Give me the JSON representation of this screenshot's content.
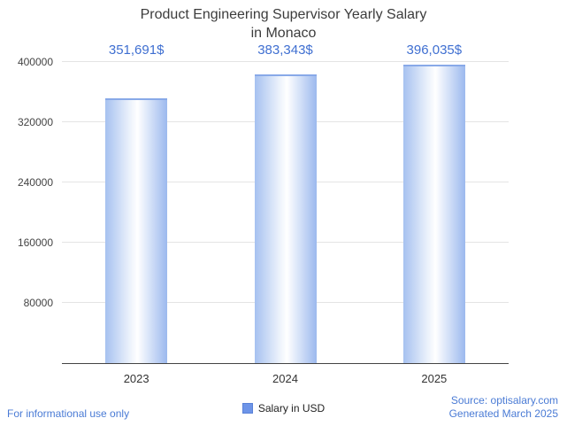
{
  "header": {
    "line1": "Product Engineering Supervisor Yearly Salary",
    "line2": "in Monaco"
  },
  "chart_data": {
    "type": "bar",
    "title": "Product Engineering Supervisor Yearly Salary in Monaco",
    "categories": [
      "2023",
      "2024",
      "2025"
    ],
    "values": [
      351691,
      383343,
      396035
    ],
    "value_labels": [
      "351,691$",
      "383,343$",
      "396,035$"
    ],
    "ylim": [
      0,
      400000
    ],
    "yticks": [
      80000,
      160000,
      240000,
      320000,
      400000
    ],
    "grid": true,
    "legend_position": "bottom",
    "legend": {
      "label": "Salary in USD",
      "swatch_color": "#6d94e8"
    },
    "bar_gradient": [
      "#a6c1f0",
      "#ffffff",
      "#9cb9ee"
    ]
  },
  "footer": {
    "left": "For informational use only",
    "source": "Source: optisalary.com",
    "generated": "Generated March 2025"
  },
  "colors": {
    "accent_blue": "#3f6fd1",
    "footer_blue": "#4a7bd5",
    "axis_text": "#444444",
    "title_text": "#3c3c3c"
  }
}
